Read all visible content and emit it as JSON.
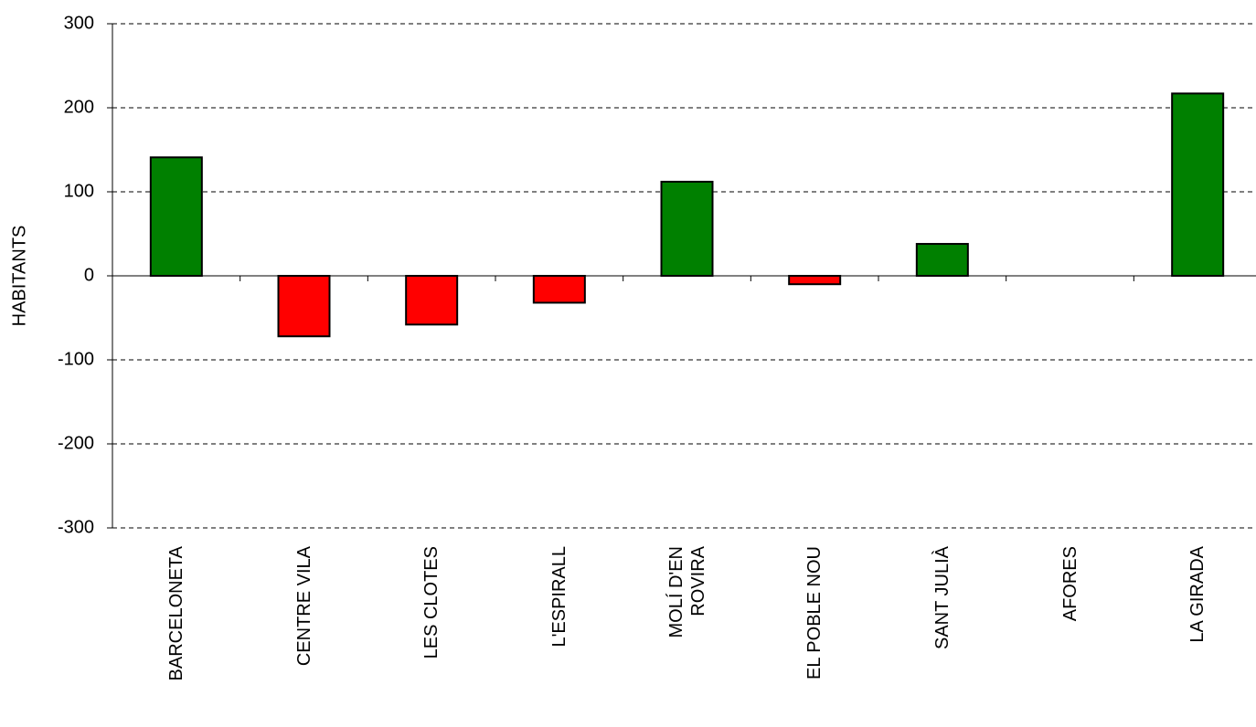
{
  "chart_data": {
    "type": "bar",
    "y_label": "HABITANTS",
    "categories": [
      "BARCELONETA",
      "CENTRE VILA",
      "LES CLOTES",
      "L'ESPIRALL",
      "MOLÍ D'EN\nROVIRA",
      "EL POBLE NOU",
      "SANT JULIÀ",
      "AFORES",
      "LA GIRADA"
    ],
    "values": [
      141,
      -72,
      -58,
      -32,
      112,
      -10,
      38,
      0,
      217
    ],
    "colors": [
      "#008000",
      "#ff0000",
      "#ff0000",
      "#ff0000",
      "#008000",
      "#ff0000",
      "#008000",
      "#008000",
      "#008000"
    ],
    "ylim": [
      -300,
      300
    ],
    "yticks": [
      -300,
      -200,
      -100,
      0,
      100,
      200,
      300
    ],
    "grid": true
  }
}
